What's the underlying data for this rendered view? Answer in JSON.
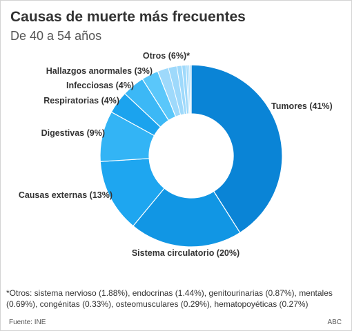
{
  "header": {
    "title": "Causas de muerte más frecuentes",
    "subtitle": "De 40 a 54 años"
  },
  "chart_data": {
    "type": "pie",
    "style": "donut",
    "title": "Causas de muerte más frecuentes",
    "subtitle": "De 40 a 54 años",
    "slices": [
      {
        "name": "Tumores",
        "value": 41,
        "label": "Tumores (41%)",
        "color": "#0a84d6"
      },
      {
        "name": "Sistema circulatorio",
        "value": 20,
        "label": "Sistema circulatorio (20%)",
        "color": "#1196e4"
      },
      {
        "name": "Causas externas",
        "value": 13,
        "label": "Causas externas (13%)",
        "color": "#1ea6f0"
      },
      {
        "name": "Digestivas",
        "value": 9,
        "label": "Digestivas (9%)",
        "color": "#33b4f5"
      },
      {
        "name": "Respiratorias",
        "value": 4,
        "label": "Respiratorias (4%)",
        "color": "#1ba3ee"
      },
      {
        "name": "Infecciosas",
        "value": 4,
        "label": "Infecciosas (4%)",
        "color": "#3cb8f6"
      },
      {
        "name": "Hallazgos anormales",
        "value": 3,
        "label": "Hallazgos anormales (3%)",
        "color": "#5ac7fa"
      },
      {
        "name": "Otros",
        "value": 6,
        "label": "Otros (6%)*",
        "color": "#9ed9fb",
        "subslices": [
          {
            "name": "sistema nervioso",
            "value": 1.88
          },
          {
            "name": "endocrinas",
            "value": 1.44
          },
          {
            "name": "genitourinarias",
            "value": 0.87
          },
          {
            "name": "mentales",
            "value": 0.69
          },
          {
            "name": "congénitas",
            "value": 0.33
          },
          {
            "name": "osteomusculares",
            "value": 0.29
          },
          {
            "name": "hematopoyéticas",
            "value": 0.27
          }
        ]
      }
    ]
  },
  "footnote": "*Otros: sistema nervioso (1.88%), endocrinas (1.44%), genitourinarias (0.87%), mentales (0.69%), congénitas (0.33%), osteomusculares (0.29%), hematopoyéticas (0.27%)",
  "source": "Fuente: INE",
  "credit": "ABC"
}
